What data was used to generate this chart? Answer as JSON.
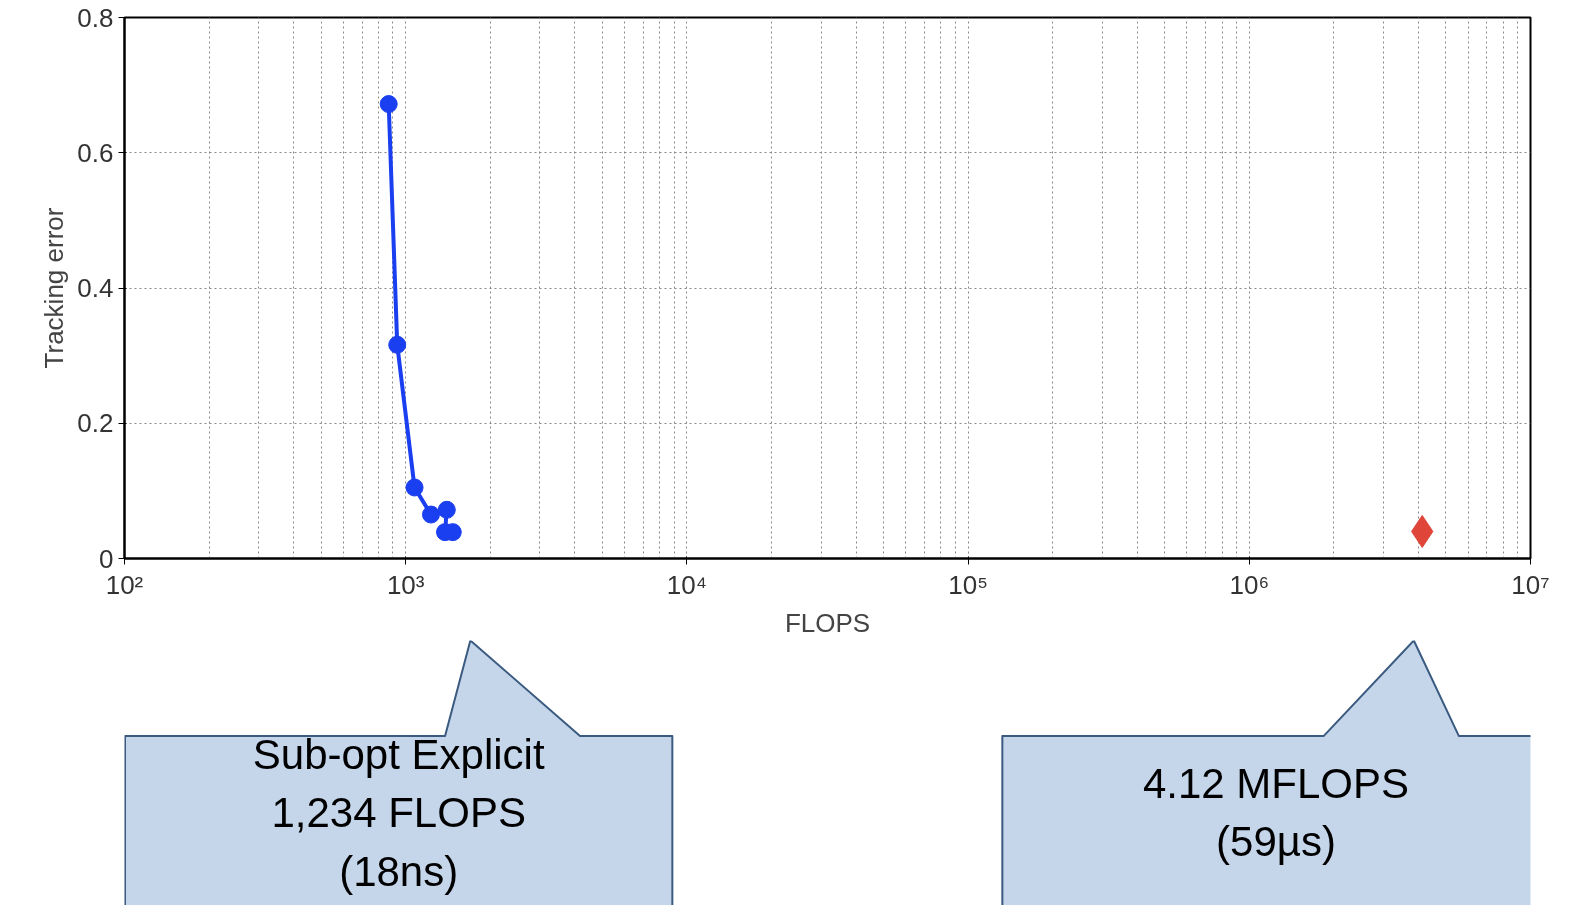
{
  "chart_data": {
    "type": "line",
    "xlabel": "FLOPS",
    "ylabel": "Tracking error",
    "log": "x",
    "xlim": [
      100,
      10000000
    ],
    "ylim": [
      0,
      0.8
    ],
    "xticks": [
      {
        "value": 100,
        "label": "10²"
      },
      {
        "value": 1000,
        "label": "10³"
      },
      {
        "value": 10000,
        "label": "10⁴"
      },
      {
        "value": 100000,
        "label": "10⁵"
      },
      {
        "value": 1000000,
        "label": "10⁶"
      },
      {
        "value": 10000000,
        "label": "10⁷"
      }
    ],
    "yticks": [
      0,
      0.2,
      0.4,
      0.6,
      0.8
    ],
    "grid": true,
    "series": [
      {
        "color": "#1a3ff0",
        "marker": "circle",
        "line_style": "solid",
        "x": [
          870,
          933,
          1075,
          1230,
          1400,
          1380,
          1470
        ],
        "values": [
          0.672,
          0.316,
          0.105,
          0.065,
          0.072,
          0.039,
          0.039
        ]
      },
      {
        "type": "scatter",
        "color": "#e0453a",
        "marker": "diamond",
        "x": [
          4120000
        ],
        "values": [
          0.04
        ]
      }
    ],
    "annotations": [
      "Sub-opt Explicit\n1,234 FLOPS\n(18ns)",
      "4.12 MFLOPS\n(59µs)"
    ]
  }
}
